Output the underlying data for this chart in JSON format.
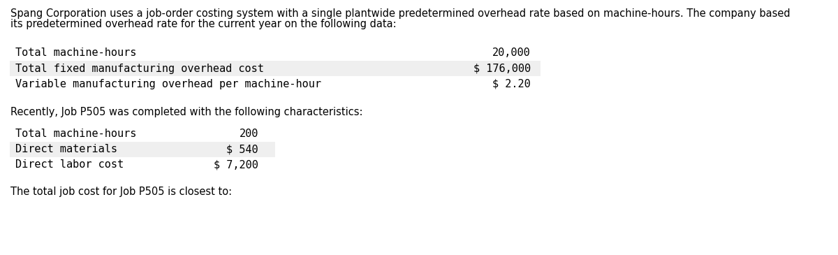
{
  "intro_line1": "Spang Corporation uses a job-order costing system with a single plantwide predetermined overhead rate based on machine-hours. The company based",
  "intro_line2": "its predetermined overhead rate for the current year on the following data:",
  "table1_rows": [
    {
      "label": "Total machine-hours",
      "value": "20,000",
      "shaded": false
    },
    {
      "label": "Total fixed manufacturing overhead cost",
      "value": "$ 176,000",
      "shaded": true
    },
    {
      "label": "Variable manufacturing overhead per machine-hour",
      "value": "$ 2.20",
      "shaded": false
    }
  ],
  "middle_text": "Recently, Job P505 was completed with the following characteristics:",
  "table2_rows": [
    {
      "label": "Total machine-hours",
      "value": "200",
      "shaded": false
    },
    {
      "label": "Direct materials",
      "value": "$ 540",
      "shaded": true
    },
    {
      "label": "Direct labor cost",
      "value": "$ 7,200",
      "shaded": false
    }
  ],
  "footer_text": "The total job cost for Job P505 is closest to:",
  "background_color": "#ffffff",
  "shade_color": "#efefef",
  "text_color": "#000000",
  "mono_font": "DejaVu Sans Mono",
  "prop_font": "DejaVu Sans",
  "intro_fontsize": 10.5,
  "table_fontsize": 11.0,
  "middle_fontsize": 10.5,
  "footer_fontsize": 10.5
}
